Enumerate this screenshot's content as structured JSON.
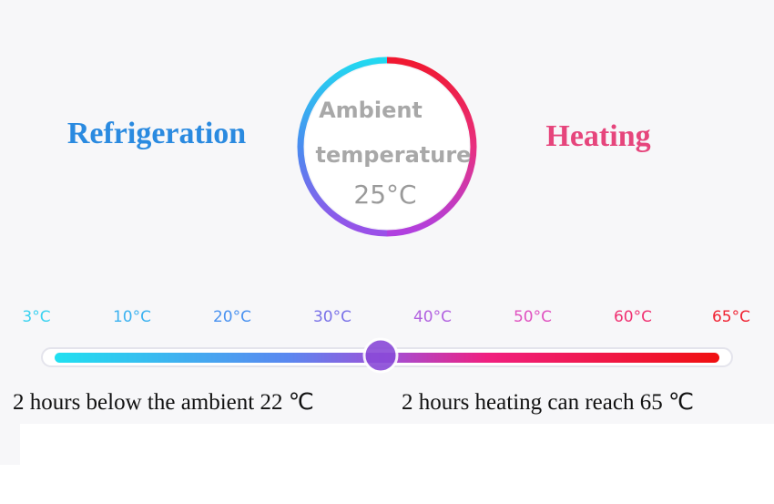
{
  "left_label": "Refrigeration",
  "right_label": "Heating",
  "dial": {
    "line1": "Ambient",
    "line2": "temperature",
    "reading": "25°C"
  },
  "scale": {
    "labels": [
      "3°C",
      "10°C",
      "20°C",
      "30°C",
      "40°C",
      "50°C",
      "60°C",
      "65°C"
    ]
  },
  "captions": [
    "2 hours below the ambient 22 ℃",
    "2 hours heating can reach 65 ℃"
  ]
}
